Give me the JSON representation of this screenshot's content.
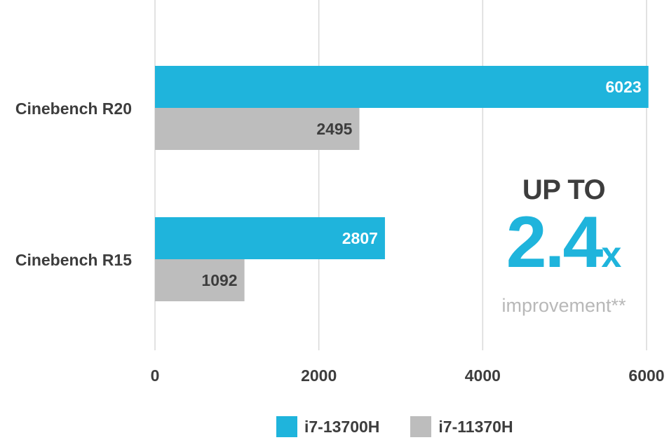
{
  "chart_data": {
    "type": "bar",
    "orientation": "horizontal",
    "categories": [
      "Cinebench R20",
      "Cinebench R15"
    ],
    "series": [
      {
        "name": "i7-13700H",
        "color": "#1fb4dc",
        "label_color": "#ffffff",
        "values": [
          6023,
          2807
        ]
      },
      {
        "name": "i7-11370H",
        "color": "#bdbdbd",
        "label_color": "#3d3d3d",
        "values": [
          2495,
          1092
        ]
      }
    ],
    "xticks": [
      "0",
      "2000",
      "4000",
      "6000"
    ],
    "xtick_values": [
      0,
      2000,
      4000,
      6000
    ],
    "xlim": [
      0,
      6100
    ],
    "grid": true,
    "legend_position": "bottom",
    "title": "",
    "xlabel": "",
    "ylabel": ""
  },
  "callout": {
    "up_to": "UP TO",
    "multiplier": "2.4",
    "x": "x",
    "subtitle": "improvement**"
  }
}
